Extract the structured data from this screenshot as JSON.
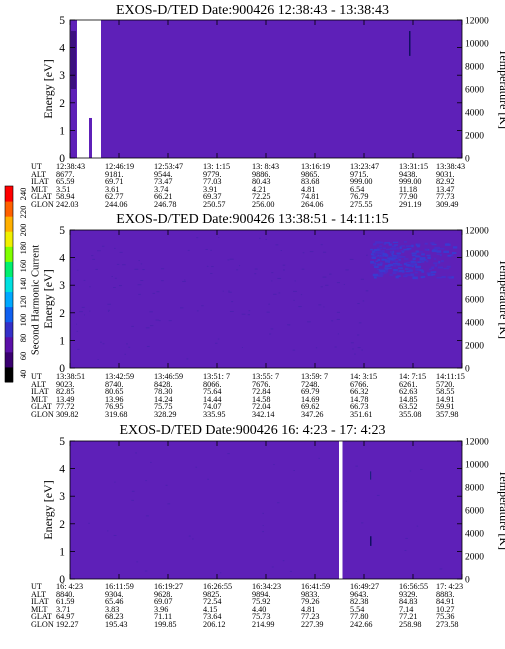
{
  "colorbar": {
    "label": "Second Harmonic Current",
    "ticks": [
      "40",
      "60",
      "80",
      "100",
      "120",
      "140",
      "160",
      "180",
      "200",
      "220",
      "240"
    ],
    "colors": [
      "#000000",
      "#3a0070",
      "#5b10a8",
      "#3530c8",
      "#1060f0",
      "#00a8ff",
      "#00e0e0",
      "#00f070",
      "#80ff00",
      "#f0f000",
      "#ffb000",
      "#ff6000",
      "#ff0000"
    ]
  },
  "chart_data": [
    {
      "type": "heatmap",
      "title": "EXOS-D/TED   Date:900426   12:38:43 - 13:38:43",
      "ylabel": "Energy [eV]",
      "y2label": "Temperature [K]",
      "ylim": [
        0,
        5
      ],
      "y2lim": [
        0,
        12000
      ],
      "yticks": [
        "0",
        "1",
        "2",
        "3",
        "4",
        "5"
      ],
      "y2ticks": [
        "0",
        "2000",
        "4000",
        "6000",
        "8000",
        "10000",
        "12000"
      ],
      "rows": [
        {
          "label": "UT",
          "values": [
            "12:38:43",
            "12:46:19",
            "12:53:47",
            "13: 1:15",
            "13: 8:43",
            "13:16:19",
            "13:23:47",
            "13:31:15",
            "13:38:43"
          ]
        },
        {
          "label": "ALT",
          "values": [
            "8677.",
            "9181.",
            "9544.",
            "9779.",
            "9886.",
            "9865.",
            "9715.",
            "9438.",
            "9031."
          ]
        },
        {
          "label": "ILAT",
          "values": [
            "65.59",
            "69.71",
            "73.47",
            "77.03",
            "80.43",
            "83.68",
            "999.00",
            "999.00",
            "82.92"
          ]
        },
        {
          "label": "MLT",
          "values": [
            "3.51",
            "3.61",
            "3.74",
            "3.91",
            "4.21",
            "4.81",
            "6.54",
            "11.18",
            "13.47"
          ]
        },
        {
          "label": "GLAT",
          "values": [
            "58.94",
            "62.77",
            "66.21",
            "69.37",
            "72.25",
            "74.81",
            "76.79",
            "77.90",
            "77.73"
          ]
        },
        {
          "label": "GLON",
          "values": [
            "242.03",
            "244.06",
            "246.78",
            "250.57",
            "256.00",
            "264.06",
            "275.55",
            "291.19",
            "309.49"
          ]
        }
      ]
    },
    {
      "type": "heatmap",
      "title": "EXOS-D/TED   Date:900426   13:38:51 - 14:11:15",
      "ylabel": "Energy [eV]",
      "y2label": "Temperature [K]",
      "ylim": [
        0,
        5
      ],
      "y2lim": [
        0,
        12000
      ],
      "yticks": [
        "0",
        "1",
        "2",
        "3",
        "4",
        "5"
      ],
      "y2ticks": [
        "0",
        "2000",
        "4000",
        "6000",
        "8000",
        "10000",
        "12000"
      ],
      "rows": [
        {
          "label": "UT",
          "values": [
            "13:38:51",
            "13:42:59",
            "13:46:59",
            "13:51: 7",
            "13:55: 7",
            "13:59: 7",
            "14: 3:15",
            "14: 7:15",
            "14:11:15"
          ]
        },
        {
          "label": "ALT",
          "values": [
            "9023.",
            "8740.",
            "8428.",
            "8066.",
            "7676.",
            "7248.",
            "6766.",
            "6261.",
            "5720."
          ]
        },
        {
          "label": "ILAT",
          "values": [
            "82.85",
            "80.65",
            "78.30",
            "75.64",
            "72.84",
            "69.79",
            "66.32",
            "62.63",
            "58.55"
          ]
        },
        {
          "label": "MLT",
          "values": [
            "13.49",
            "13.96",
            "14.24",
            "14.44",
            "14.58",
            "14.69",
            "14.78",
            "14.85",
            "14.91"
          ]
        },
        {
          "label": "GLAT",
          "values": [
            "77.72",
            "76.95",
            "75.75",
            "74.07",
            "72.04",
            "69.62",
            "66.73",
            "63.52",
            "59.91"
          ]
        },
        {
          "label": "GLON",
          "values": [
            "309.82",
            "319.68",
            "328.29",
            "335.95",
            "342.14",
            "347.26",
            "351.61",
            "355.08",
            "357.98"
          ]
        }
      ]
    },
    {
      "type": "heatmap",
      "title": "EXOS-D/TED   Date:900426   16: 4:23 - 17: 4:23",
      "ylabel": "Energy [eV]",
      "y2label": "Temperature [K]",
      "ylim": [
        0,
        5
      ],
      "y2lim": [
        0,
        12000
      ],
      "yticks": [
        "0",
        "1",
        "2",
        "3",
        "4",
        "5"
      ],
      "y2ticks": [
        "0",
        "2000",
        "4000",
        "6000",
        "8000",
        "10000",
        "12000"
      ],
      "rows": [
        {
          "label": "UT",
          "values": [
            "16: 4:23",
            "16:11:59",
            "16:19:27",
            "16:26:55",
            "16:34:23",
            "16:41:59",
            "16:49:27",
            "16:56:55",
            "17: 4:23"
          ]
        },
        {
          "label": "ALT",
          "values": [
            "8840.",
            "9304.",
            "9628.",
            "9825.",
            "9894.",
            "9833.",
            "9643.",
            "9329.",
            "8883."
          ]
        },
        {
          "label": "ILAT",
          "values": [
            "61.59",
            "65.46",
            "69.07",
            "72.54",
            "75.92",
            "79.26",
            "82.38",
            "84.83",
            "84.91"
          ]
        },
        {
          "label": "MLT",
          "values": [
            "3.71",
            "3.83",
            "3.96",
            "4.15",
            "4.40",
            "4.81",
            "5.54",
            "7.14",
            "10.27"
          ]
        },
        {
          "label": "GLAT",
          "values": [
            "64.97",
            "68.23",
            "71.11",
            "73.64",
            "75.73",
            "77.23",
            "77.80",
            "77.21",
            "75.36"
          ]
        },
        {
          "label": "GLON",
          "values": [
            "192.27",
            "195.43",
            "199.85",
            "206.12",
            "214.99",
            "227.39",
            "242.66",
            "258.98",
            "273.58"
          ]
        }
      ]
    }
  ]
}
